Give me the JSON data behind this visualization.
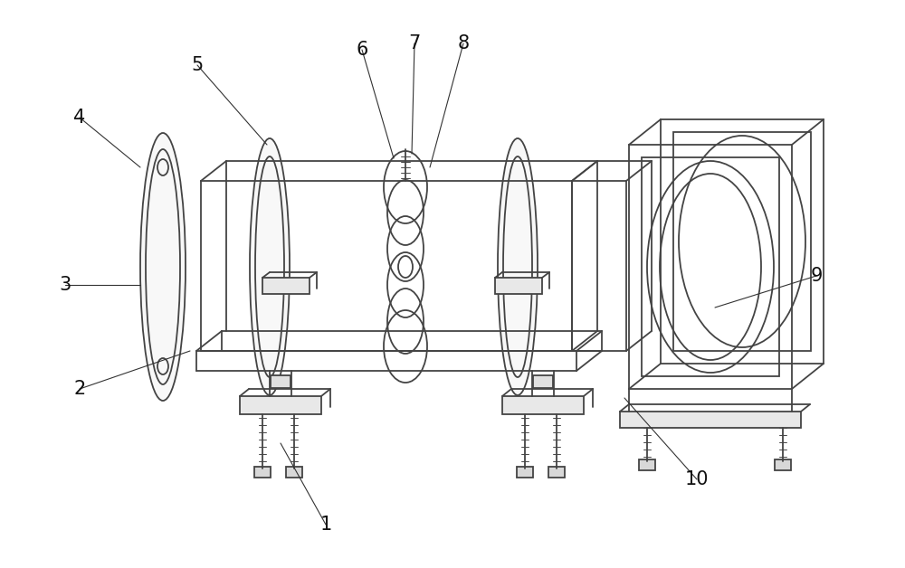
{
  "background_color": "#ffffff",
  "line_color": "#444444",
  "line_width": 1.3,
  "fig_width": 10.0,
  "fig_height": 6.28,
  "label_fontsize": 15
}
